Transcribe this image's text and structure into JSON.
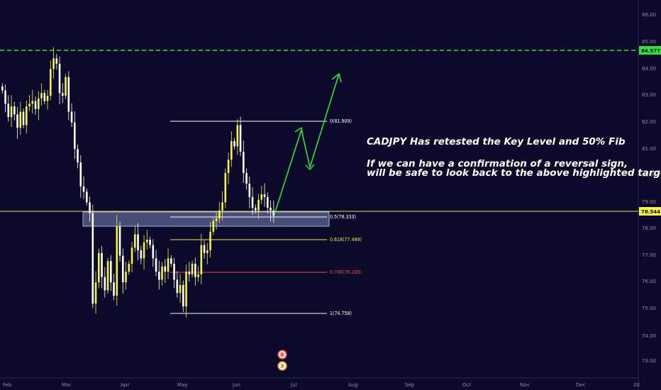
{
  "chart_data": {
    "type": "candlestick",
    "symbol": "CADJPY",
    "colors": {
      "background": "#0b0a2a",
      "bull": "#f4f14a",
      "bear": "#ffffff",
      "zone_fill": "#7a85b4",
      "zone_border": "#a9b5df",
      "key_line": "#e7e04b",
      "target_line": "#33e03a",
      "arrow": "#33e03a",
      "fib_0": "#ffffff",
      "fib_05": "#ffffff",
      "fib_0618": "#f2e64a",
      "fib_0786": "#e84a4a",
      "fib_1": "#ffffff",
      "label_key_bg": "#f4f14a",
      "label_target_bg": "#33e03a"
    },
    "y_axis": {
      "side": "right",
      "range": [
        72.7,
        86.3
      ],
      "ticks": [
        "73.00",
        "74.00",
        "75.00",
        "76.00",
        "77.00",
        "78.00",
        "79.00",
        "80.00",
        "81.00",
        "82.00",
        "83.00",
        "84.00",
        "85.00",
        "86.00"
      ]
    },
    "x_axis": {
      "labels": [
        "Feb",
        "Mar",
        "Apr",
        "May",
        "Jun",
        "Jul",
        "Aug",
        "Sep",
        "Oct",
        "Nov",
        "Dec",
        "20"
      ]
    },
    "price_labels": {
      "current": "78.544",
      "target": "84.577"
    },
    "key_level": 78.544,
    "target_level": 84.577,
    "support_zone": [
      78.05,
      78.55
    ],
    "fib_levels": [
      {
        "ratio": "0",
        "price": 81.909,
        "label": "0(81.909)",
        "color": "#ffffff"
      },
      {
        "ratio": "0.5",
        "price": 78.333,
        "label": "0.5(78.333)",
        "color": "#ffffff"
      },
      {
        "ratio": "0.618",
        "price": 77.489,
        "label": "0.618(77.489)",
        "color": "#f2e64a"
      },
      {
        "ratio": "0.786",
        "price": 76.288,
        "label": "0.786(76.288)",
        "color": "#e84a4a"
      },
      {
        "ratio": "1",
        "price": 74.758,
        "label": "1(74.758)",
        "color": "#ffffff"
      }
    ],
    "projection": {
      "prices": [
        78.4,
        81.8,
        80.1,
        83.7
      ],
      "description_points": [
        "current",
        "high",
        "pullback",
        "target"
      ]
    },
    "annotation": {
      "line1": "CADJPY Has retested the Key Level and 50% Fib",
      "line2": "If we can have a confirmation of a reversal sign,",
      "line3": "will be safe to look back to the above highlighted target"
    },
    "event_badges": {
      "top": "0",
      "bottom": "3"
    },
    "series_close": [
      83.2,
      82.7,
      82.2,
      82.6,
      82.3,
      81.8,
      82.4,
      81.9,
      82.6,
      82.7,
      82.8,
      82.5,
      82.9,
      83.1,
      82.8,
      83.0,
      84.0,
      84.4,
      84.2,
      83.1,
      83.0,
      83.7,
      82.4,
      82.0,
      81.0,
      80.5,
      79.6,
      79.4,
      79.0,
      78.6,
      75.2,
      76.0,
      77.1,
      76.2,
      75.7,
      76.8,
      76.0,
      75.5,
      78.1,
      77.0,
      76.0,
      76.4,
      76.7,
      77.3,
      77.8,
      77.2,
      76.9,
      77.5,
      77.6,
      77.4,
      76.9,
      76.4,
      76.1,
      76.6,
      76.4,
      76.9,
      76.7,
      76.1,
      75.6,
      75.9,
      75.1,
      76.4,
      76.3,
      76.7,
      76.2,
      76.3,
      77.4,
      77.1,
      77.2,
      77.9,
      78.3,
      78.4,
      78.7,
      79.0,
      80.1,
      80.6,
      81.3,
      81.1,
      81.9,
      80.9,
      80.1,
      79.7,
      79.2,
      78.8,
      78.7,
      79.1,
      79.3,
      79.2,
      78.8,
      78.7,
      78.5
    ]
  }
}
